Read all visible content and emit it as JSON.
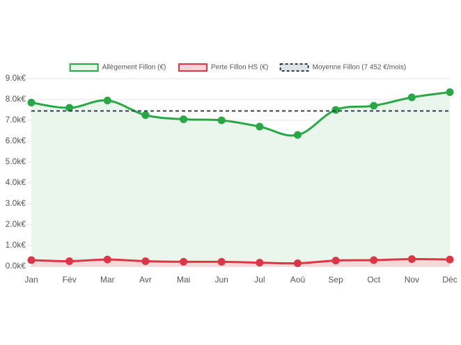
{
  "chart_data": {
    "type": "line",
    "categories": [
      "Jan",
      "Fév",
      "Mar",
      "Avr",
      "Mai",
      "Jun",
      "Jul",
      "Aoû",
      "Sep",
      "Oct",
      "Nov",
      "Déc"
    ],
    "series": [
      {
        "name": "Allègement Fillon (€)",
        "color": "#28a745",
        "fill": "#e8f5e9",
        "values": [
          7.85,
          7.6,
          7.95,
          7.25,
          7.05,
          7.0,
          6.7,
          6.3,
          7.5,
          7.7,
          8.1,
          8.35
        ]
      },
      {
        "name": "Perte Fillon HS (€)",
        "color": "#dc3545",
        "fill": "#f5d5d8",
        "values": [
          0.3,
          0.25,
          0.33,
          0.25,
          0.22,
          0.22,
          0.18,
          0.15,
          0.28,
          0.3,
          0.35,
          0.33
        ]
      },
      {
        "name": "Moyenne Fillon (7 452 €/mois)",
        "color": "#2c3e50",
        "fill": "#dfe3e8",
        "dashed": true,
        "value": 7.452
      }
    ],
    "ylim": [
      0,
      9
    ],
    "yticks": [
      {
        "value": 0,
        "label": "0.0k€"
      },
      {
        "value": 1,
        "label": "1.0k€"
      },
      {
        "value": 2,
        "label": "2.0k€"
      },
      {
        "value": 3,
        "label": "3.0k€"
      },
      {
        "value": 4,
        "label": "4.0k€"
      },
      {
        "value": 5,
        "label": "5.0k€"
      },
      {
        "value": 6,
        "label": "6.0k€"
      },
      {
        "value": 7,
        "label": "7.0k€"
      },
      {
        "value": 8,
        "label": "8.0k€"
      },
      {
        "value": 9,
        "label": "9.0k€"
      }
    ],
    "grid": true,
    "legend": "top"
  }
}
